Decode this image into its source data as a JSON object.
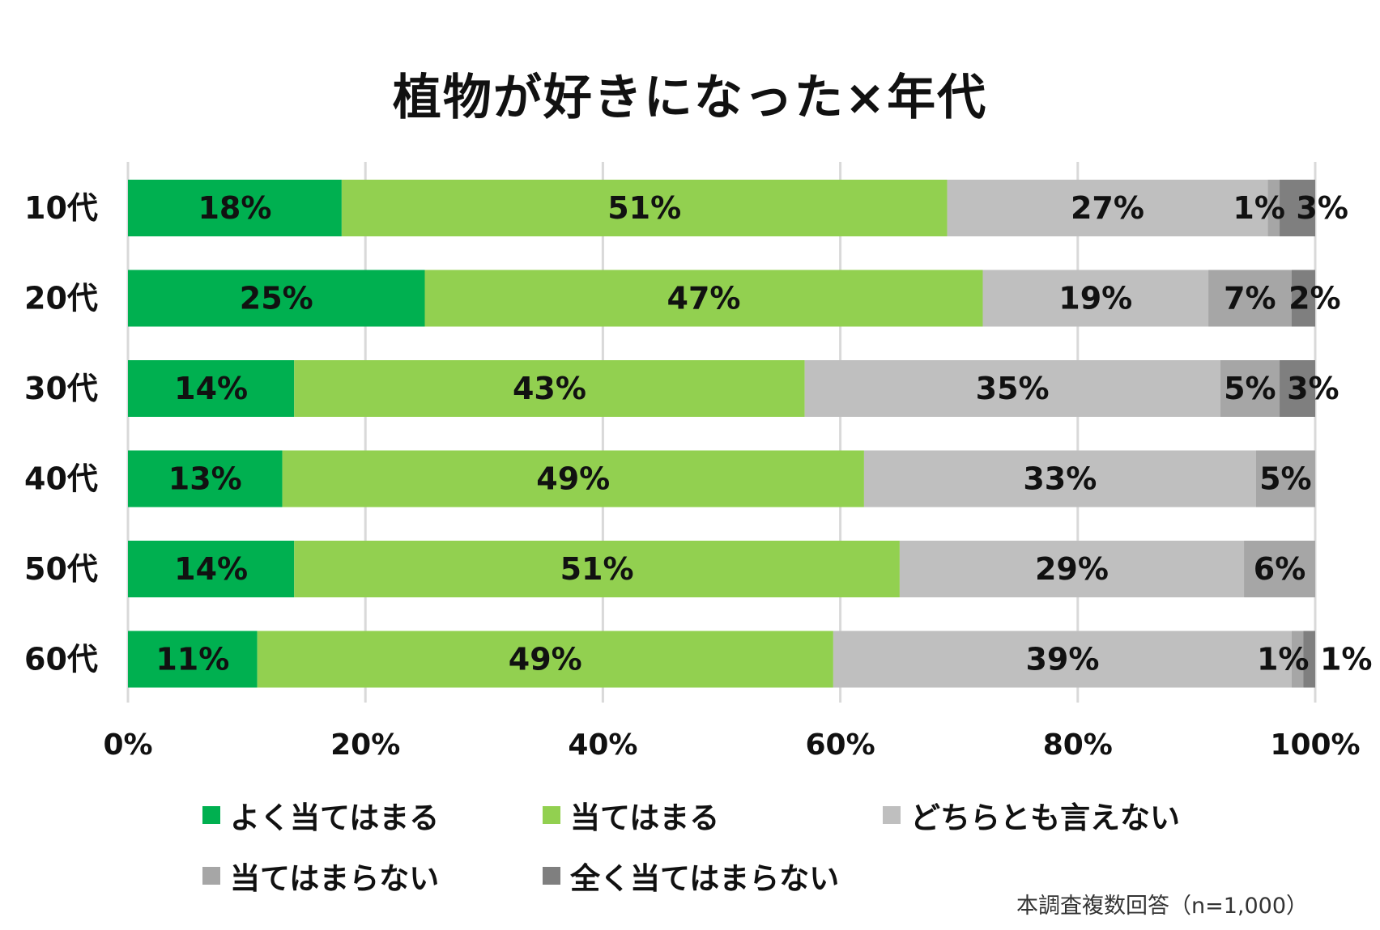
{
  "chart_data": {
    "type": "bar",
    "orientation": "horizontal-stacked-100",
    "title": "植物が好きになった×年代",
    "categories": [
      "10代",
      "20代",
      "30代",
      "40代",
      "50代",
      "60代"
    ],
    "series": [
      {
        "name": "よく当てはまる",
        "color": "#00b050",
        "values": [
          18,
          25,
          14,
          13,
          14,
          11
        ],
        "labels": [
          "18%",
          "25%",
          "14%",
          "13%",
          "14%",
          "11%"
        ]
      },
      {
        "name": "当てはまる",
        "color": "#92d050",
        "values": [
          51,
          47,
          43,
          49,
          51,
          49
        ],
        "labels": [
          "51%",
          "47%",
          "43%",
          "49%",
          "51%",
          "49%"
        ]
      },
      {
        "name": "どちらとも言えない",
        "color": "#bfbfbf",
        "values": [
          27,
          19,
          35,
          33,
          29,
          39
        ],
        "labels": [
          "27%",
          "19%",
          "35%",
          "33%",
          "29%",
          "39%"
        ]
      },
      {
        "name": "当てはまらない",
        "color": "#a6a6a6",
        "values": [
          1,
          7,
          5,
          5,
          6,
          1
        ],
        "labels": [
          "1%",
          "7%",
          "5%",
          "5%",
          "6%",
          "1%"
        ]
      },
      {
        "name": "全く当てはまらない",
        "color": "#7f7f7f",
        "values": [
          3,
          2,
          3,
          0,
          0,
          1
        ],
        "labels": [
          "3%",
          "2%",
          "3%",
          "",
          "",
          "1%"
        ]
      }
    ],
    "xaxis": {
      "ticks": [
        "0%",
        "20%",
        "40%",
        "60%",
        "80%",
        "100%"
      ],
      "range": [
        0,
        100
      ]
    },
    "grid": true,
    "legend_position": "bottom"
  },
  "note": "本調査複数回答（n=1,000）"
}
